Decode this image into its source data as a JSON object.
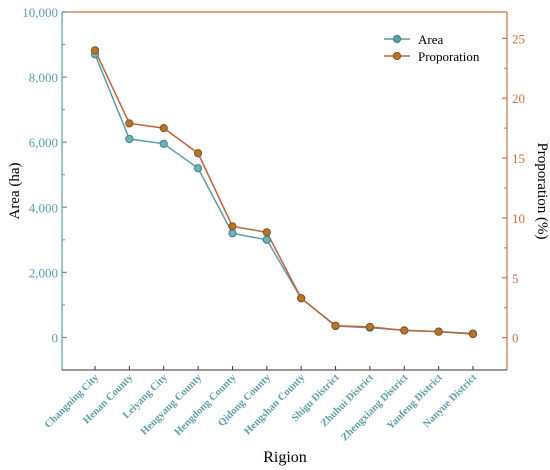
{
  "chart_data": {
    "type": "line",
    "title": "",
    "xlabel": "Rigion",
    "ylabel_left": "Area (ha)",
    "ylabel_right": "Proporation (%)",
    "categories": [
      "Changning City",
      "Henan County",
      "Leiyang City",
      "Hengyang County",
      "Hengdong County",
      "Qidong County",
      "Hengshan County",
      "Shigu District",
      "Zhuhui District",
      "Zhengxiang District",
      "Yanfeng District",
      "Nanyue District"
    ],
    "yticks_left": [
      "0",
      "2,000",
      "4,000",
      "6,000",
      "8,000",
      "10,000"
    ],
    "yticks_right": [
      "0",
      "5",
      "10",
      "15",
      "20",
      "25"
    ],
    "ylim_left": [
      -1000,
      10000
    ],
    "ylim_right": [
      -2.7,
      27.2
    ],
    "grid": false,
    "legend_position": "top-right",
    "series": [
      {
        "name": "Area",
        "axis": "left",
        "color": "#5b9ea8",
        "values": [
          8700,
          6100,
          5950,
          5200,
          3200,
          3000,
          1200,
          350,
          300,
          220,
          180,
          120
        ]
      },
      {
        "name": "Proporation",
        "axis": "right",
        "color": "#c0623a",
        "values": [
          24.0,
          17.9,
          17.5,
          15.4,
          9.3,
          8.8,
          3.3,
          1.0,
          0.9,
          0.6,
          0.5,
          0.3
        ]
      }
    ],
    "colors": {
      "left_axis": "#5b9ea8",
      "right_axis": "#d0703a",
      "area_line": "#5b9ea8",
      "proportion_line": "#c0623a"
    }
  }
}
